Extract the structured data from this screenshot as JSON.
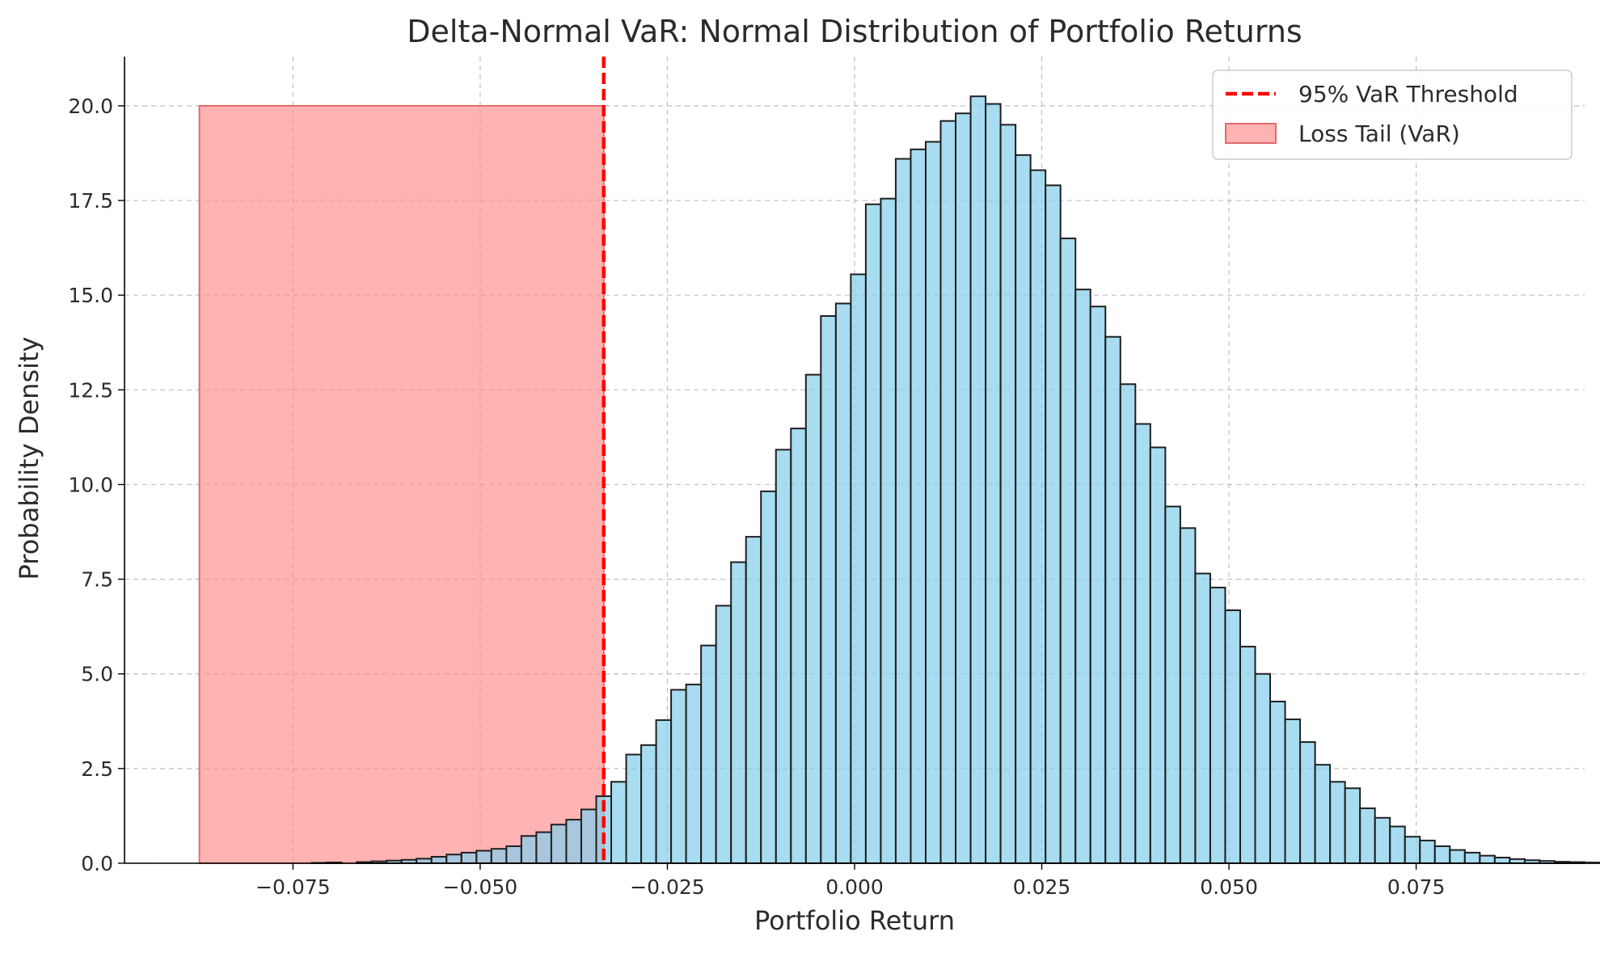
{
  "chart_data": {
    "type": "bar",
    "title": "Delta-Normal VaR: Normal Distribution of Portfolio Returns",
    "xlabel": "Portfolio Return",
    "ylabel": "Probability Density",
    "xlim": [
      -0.0975,
      0.0975
    ],
    "ylim": [
      0,
      21.3
    ],
    "xticks": [
      -0.075,
      -0.05,
      -0.025,
      0.0,
      0.025,
      0.05,
      0.075
    ],
    "xtick_labels": [
      "−0.075",
      "−0.050",
      "−0.025",
      "0.000",
      "0.025",
      "0.050",
      "0.075"
    ],
    "yticks": [
      0,
      2.5,
      5,
      7.5,
      10,
      12.5,
      15,
      17.5,
      20
    ],
    "ytick_labels": [
      "0.0",
      "2.5",
      "5.0",
      "7.5",
      "10.0",
      "12.5",
      "15.0",
      "17.5",
      "20.0"
    ],
    "grid": true,
    "legend_position": "top-right",
    "histogram": {
      "name": "",
      "color": "#87ceeb",
      "edge_color": "#1f1f1f",
      "bin_start": -0.0725,
      "bin_width": 0.002,
      "values": [
        0.01,
        0.02,
        0.0,
        0.03,
        0.05,
        0.07,
        0.09,
        0.12,
        0.17,
        0.23,
        0.28,
        0.33,
        0.38,
        0.45,
        0.72,
        0.82,
        1.02,
        1.15,
        1.42,
        1.77,
        2.15,
        2.87,
        3.12,
        3.78,
        4.58,
        4.72,
        5.75,
        6.8,
        7.95,
        8.62,
        9.82,
        10.92,
        11.48,
        12.9,
        14.45,
        14.78,
        15.55,
        17.4,
        17.55,
        18.6,
        18.85,
        19.05,
        19.6,
        19.8,
        20.25,
        20.05,
        19.5,
        18.7,
        18.3,
        17.9,
        16.5,
        15.15,
        14.7,
        13.9,
        12.65,
        11.6,
        10.98,
        9.42,
        8.85,
        7.65,
        7.28,
        6.68,
        5.72,
        5.0,
        4.27,
        3.8,
        3.2,
        2.6,
        2.15,
        1.98,
        1.45,
        1.2,
        0.97,
        0.7,
        0.6,
        0.45,
        0.35,
        0.28,
        0.2,
        0.15,
        0.11,
        0.08,
        0.06,
        0.04,
        0.03,
        0.02,
        0.01,
        0.01,
        0.01,
        0.0,
        0.0,
        0.01
      ]
    },
    "var_threshold": {
      "name": "95% VaR Threshold",
      "x": -0.0335,
      "color": "#ff0000",
      "style": "dashed"
    },
    "loss_tail": {
      "name": "Loss Tail (VaR)",
      "x_start": -0.0875,
      "x_end": -0.0335,
      "height": 20,
      "color": "#ff8a8a"
    }
  }
}
